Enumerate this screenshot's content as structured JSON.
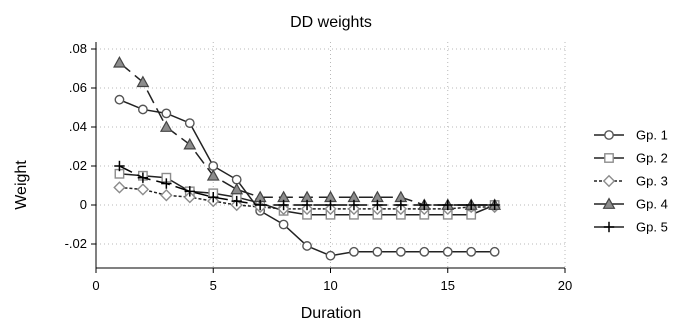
{
  "chart_data": {
    "type": "line",
    "title": "DD weights",
    "xlabel": "Duration",
    "ylabel": "Weight",
    "xlim": [
      0,
      20
    ],
    "ylim": [
      -0.025,
      0.08
    ],
    "xticks": [
      {
        "value": 0,
        "label": "0"
      },
      {
        "value": 5,
        "label": "5"
      },
      {
        "value": 10,
        "label": "10"
      },
      {
        "value": 15,
        "label": "15"
      },
      {
        "value": 20,
        "label": "20"
      }
    ],
    "yticks": [
      {
        "value": -0.02,
        "label": "-.02"
      },
      {
        "value": 0,
        "label": "0"
      },
      {
        "value": 0.02,
        "label": ".02"
      },
      {
        "value": 0.04,
        "label": ".04"
      },
      {
        "value": 0.06,
        "label": ".06"
      },
      {
        "value": 0.08,
        "label": ".08"
      }
    ],
    "grid": true,
    "legend_position": "right",
    "series": [
      {
        "name": "Gp. 1",
        "marker": "circle",
        "color": "#555555",
        "line": "solid",
        "x": [
          1,
          2,
          3,
          4,
          5,
          6,
          7,
          8,
          9,
          10,
          11,
          12,
          13,
          14,
          15,
          16,
          17
        ],
        "y": [
          0.054,
          0.049,
          0.047,
          0.042,
          0.02,
          0.013,
          -0.003,
          -0.01,
          -0.021,
          -0.026,
          -0.024,
          -0.024,
          -0.024,
          -0.024,
          -0.024,
          -0.024,
          -0.024
        ]
      },
      {
        "name": "Gp. 2",
        "marker": "square",
        "color": "#555555",
        "line": "solid",
        "x": [
          1,
          2,
          3,
          4,
          5,
          6,
          7,
          8,
          9,
          10,
          11,
          12,
          13,
          14,
          15,
          16,
          17
        ],
        "y": [
          0.016,
          0.015,
          0.014,
          0.007,
          0.006,
          0.004,
          0.001,
          -0.003,
          -0.005,
          -0.005,
          -0.005,
          -0.005,
          -0.005,
          -0.005,
          -0.005,
          -0.005,
          0.0
        ]
      },
      {
        "name": "Gp. 3",
        "marker": "diamond",
        "color": "#555555",
        "line": "dashed",
        "x": [
          1,
          2,
          3,
          4,
          5,
          6,
          7,
          8,
          9,
          10,
          11,
          12,
          13,
          14,
          15,
          16,
          17
        ],
        "y": [
          0.009,
          0.008,
          0.005,
          0.004,
          0.002,
          0.0,
          -0.001,
          -0.002,
          -0.002,
          -0.002,
          -0.002,
          -0.002,
          -0.002,
          -0.002,
          -0.002,
          -0.001,
          -0.001
        ]
      },
      {
        "name": "Gp. 4",
        "marker": "triangle",
        "color": "#555555",
        "line": "broken",
        "x": [
          1,
          2,
          3,
          4,
          5,
          6,
          7,
          8,
          9,
          10,
          11,
          12,
          13,
          14,
          15,
          16,
          17
        ],
        "y": [
          0.073,
          0.063,
          0.04,
          0.031,
          0.015,
          0.008,
          0.004,
          0.004,
          0.004,
          0.004,
          0.004,
          0.004,
          0.004,
          0.0,
          0.0,
          0.0,
          0.0
        ]
      },
      {
        "name": "Gp. 5",
        "marker": "plus",
        "color": "#000000",
        "line": "broken",
        "x": [
          1,
          2,
          3,
          4,
          5,
          6,
          7,
          8,
          9,
          10,
          11,
          12,
          13,
          14,
          15,
          16,
          17
        ],
        "y": [
          0.02,
          0.014,
          0.011,
          0.007,
          0.004,
          0.002,
          0.0,
          0.0,
          0.0,
          0.0,
          0.0,
          0.0,
          0.0,
          0.0,
          0.0,
          0.0,
          0.0
        ]
      }
    ]
  }
}
